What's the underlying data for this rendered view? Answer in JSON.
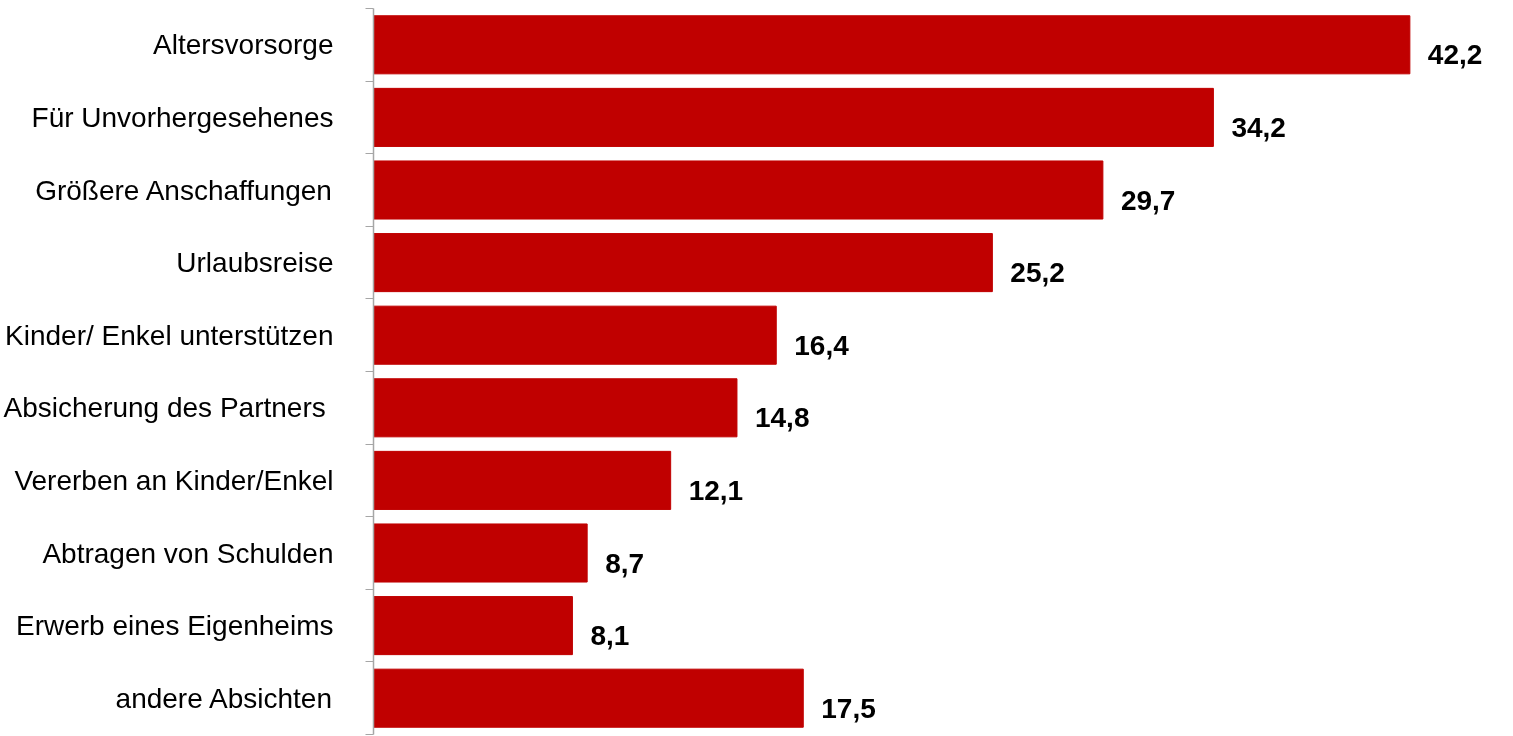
{
  "chart_data": {
    "type": "bar",
    "orientation": "horizontal",
    "categories": [
      "Altersvorsorge",
      "Für Unvorhergesehenes",
      "Größere Anschaffungen",
      "Urlaubsreise",
      "Kinder/ Enkel unterstützen",
      "Absicherung des Partners ",
      "Vererben an Kinder/Enkel",
      "Abtragen von Schulden",
      "Erwerb eines Eigenheims",
      "andere Absichten"
    ],
    "values": [
      42.2,
      34.2,
      29.7,
      25.2,
      16.4,
      14.8,
      12.1,
      8.7,
      8.1,
      17.5
    ],
    "value_labels": [
      "42,2",
      "34,2",
      "29,7",
      "25,2",
      "16,4",
      "14,8",
      "12,1",
      "8,7",
      "8,1",
      "17,5"
    ],
    "color": "#c00000",
    "tick_labels": "y",
    "grid": false
  }
}
